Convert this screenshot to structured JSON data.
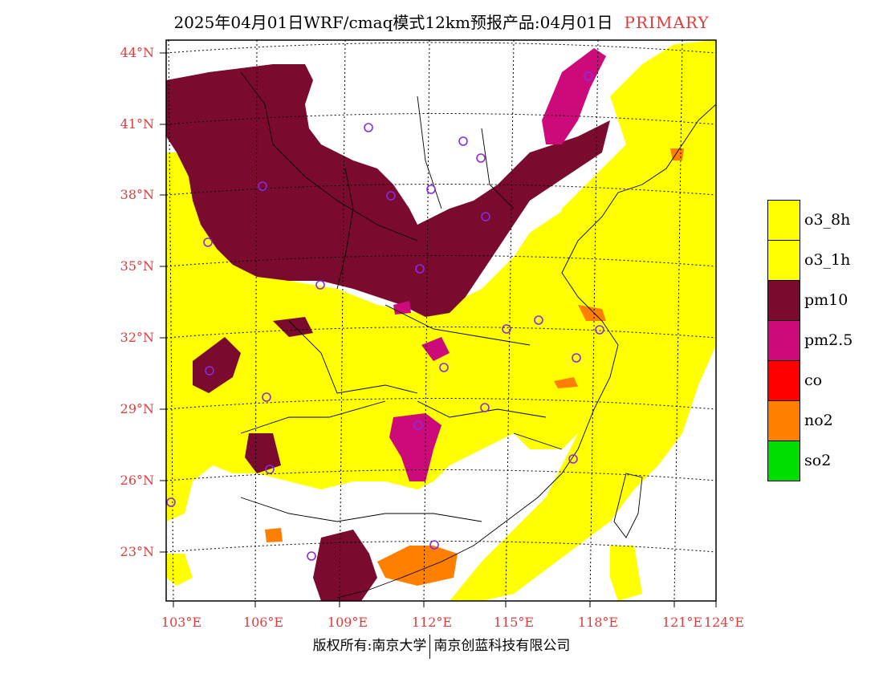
{
  "header": {
    "title": "2025年04月01日WRF/cmaq模式12km预报产品:04月01日",
    "tag": "PRIMARY"
  },
  "map": {
    "lat_labels": [
      "44°N",
      "41°N",
      "38°N",
      "35°N",
      "32°N",
      "29°N",
      "26°N",
      "23°N"
    ],
    "lon_labels": [
      "103°E",
      "106°E",
      "109°E",
      "112°E",
      "115°E",
      "118°E",
      "121°E",
      "124°E"
    ]
  },
  "legend": {
    "items": [
      {
        "label": "o3_8h",
        "color": "#ffff00"
      },
      {
        "label": "o3_1h",
        "color": "#ffff00"
      },
      {
        "label": "pm10",
        "color": "#7a0a2e"
      },
      {
        "label": "pm2.5",
        "color": "#cc0a7a"
      },
      {
        "label": "co",
        "color": "#ff0000"
      },
      {
        "label": "no2",
        "color": "#ff7f00"
      },
      {
        "label": "so2",
        "color": "#00dd00"
      }
    ]
  },
  "footer": {
    "left": "版权所有:南京大学",
    "right": "南京创蓝科技有限公司"
  },
  "colors": {
    "axis_label": "#e03c3c",
    "station_marker": "#8a2be2"
  }
}
